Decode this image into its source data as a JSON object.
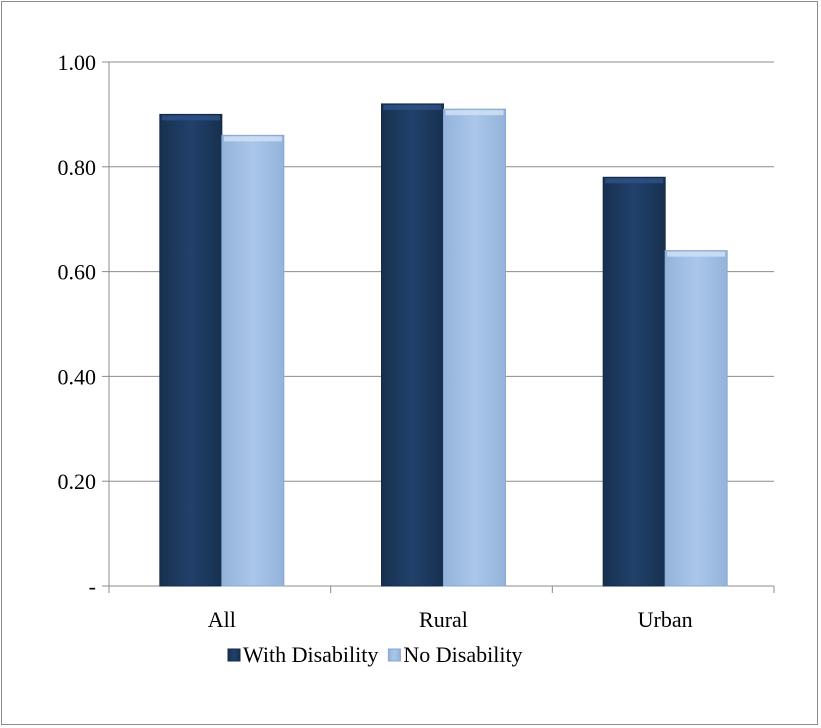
{
  "chart_data": {
    "type": "bar",
    "categories": [
      "All",
      "Rural",
      "Urban"
    ],
    "series": [
      {
        "name": "With Disability",
        "values": [
          0.9,
          0.92,
          0.78
        ],
        "color": "#1f3b63"
      },
      {
        "name": "No Disability",
        "values": [
          0.86,
          0.91,
          0.64
        ],
        "color": "#a3c0e4"
      }
    ],
    "ylim": [
      0,
      1.0
    ],
    "yticks": [
      0,
      0.2,
      0.4,
      0.6,
      0.8,
      1.0
    ],
    "ytick_labels": [
      "-",
      "0.20",
      "0.40",
      "0.60",
      "0.80",
      "1.00"
    ],
    "grid": true,
    "legend_position": "bottom"
  }
}
